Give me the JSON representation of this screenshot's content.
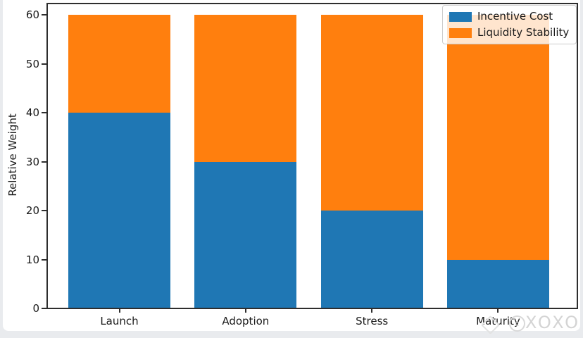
{
  "chart_data": {
    "type": "bar",
    "stacked": true,
    "title": "",
    "xlabel": "",
    "ylabel": "Relative Weight",
    "categories": [
      "Launch",
      "Adoption",
      "Stress",
      "Maturity"
    ],
    "series": [
      {
        "name": "Incentive Cost",
        "color": "#1f77b4",
        "values": [
          40,
          30,
          20,
          10
        ]
      },
      {
        "name": "Liquidity Stability",
        "color": "#ff7f0e",
        "values": [
          20,
          30,
          40,
          50
        ]
      }
    ],
    "totals": [
      60,
      60,
      60,
      60
    ],
    "yticks": [
      0,
      10,
      20,
      30,
      40,
      50,
      60
    ],
    "ylim": [
      0,
      62.4
    ],
    "grid": false,
    "legend_position": "upper right",
    "plot_background": "#ffffff"
  },
  "watermark": {
    "text": "XOXO",
    "color": "#d4d4d4"
  }
}
